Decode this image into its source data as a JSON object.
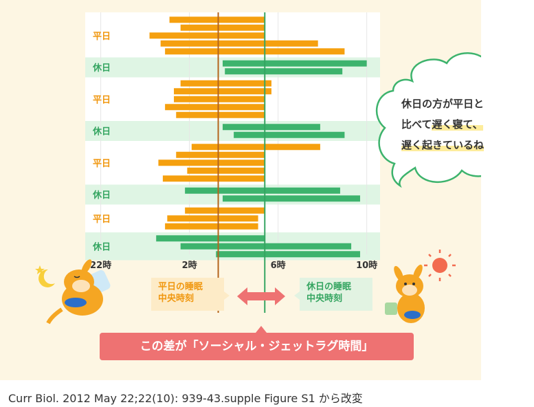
{
  "chart_data": {
    "type": "bar",
    "x_ticks": [
      {
        "value": 22,
        "label": "22時"
      },
      {
        "value": 26,
        "label": "2時"
      },
      {
        "value": 30,
        "label": "6時"
      },
      {
        "value": 34,
        "label": "10時"
      }
    ],
    "xlim": [
      21.3,
      34.6
    ],
    "groups": [
      {
        "label": "平日",
        "type": "weekday",
        "bars": [
          [
            25.1,
            29.4
          ],
          [
            25.6,
            29.4
          ],
          [
            24.2,
            29.4
          ],
          [
            24.7,
            31.8
          ],
          [
            24.9,
            33.0
          ]
        ]
      },
      {
        "label": "休日",
        "type": "weekend",
        "bars": [
          [
            27.5,
            34.0
          ],
          [
            27.6,
            32.9
          ]
        ]
      },
      {
        "label": "平日",
        "type": "weekday",
        "bars": [
          [
            25.6,
            29.7
          ],
          [
            25.3,
            29.7
          ],
          [
            25.3,
            29.4
          ],
          [
            24.9,
            29.4
          ],
          [
            25.4,
            29.4
          ]
        ]
      },
      {
        "label": "休日",
        "type": "weekend",
        "bars": [
          [
            27.5,
            31.9
          ],
          [
            28.0,
            33.0
          ]
        ]
      },
      {
        "label": "平日",
        "type": "weekday",
        "bars": [
          [
            26.1,
            31.9
          ],
          [
            25.4,
            29.4
          ],
          [
            24.6,
            29.4
          ],
          [
            25.9,
            29.4
          ],
          [
            24.8,
            29.4
          ]
        ]
      },
      {
        "label": "休日",
        "type": "weekend",
        "bars": [
          [
            25.8,
            32.8
          ],
          [
            27.5,
            33.7
          ]
        ]
      },
      {
        "label": "平日",
        "type": "weekday",
        "bars": [
          [
            25.8,
            29.4
          ],
          [
            25.0,
            29.1
          ],
          [
            24.9,
            29.1
          ]
        ]
      },
      {
        "label": "休日",
        "type": "weekend",
        "bars": [
          [
            24.5,
            29.4
          ],
          [
            25.6,
            33.3
          ],
          [
            27.2,
            33.7
          ]
        ]
      }
    ],
    "reference_lines": [
      {
        "name": "weekday-midpoint",
        "value": 27.3,
        "color": "#b5651d"
      },
      {
        "name": "weekend-midpoint",
        "value": 29.4,
        "color": "#35a561"
      }
    ],
    "colors": {
      "weekday": "#f5a00f",
      "weekend": "#3db36d",
      "weekday_label": "#f0970f",
      "weekend_label": "#35a561",
      "weekend_band": "#dff5e4"
    }
  },
  "labels": {
    "weekday_midpoint": [
      "平日の睡眠",
      "中央時刻"
    ],
    "weekend_midpoint": [
      "休日の睡眠",
      "中央時刻"
    ],
    "banner": "この差が「ソーシャル・ジェットラグ時間」",
    "bubble": {
      "line1": "休日の方が平日と",
      "line2_pre": "比べて",
      "line2_hl": "遅く寝て、",
      "line3_hl": "遅く起きているね"
    },
    "source": "Curr Biol. 2012 May 22;22(10): 939-43.supple Figure S1 から改変"
  },
  "icons": {
    "moon": "moon-icon",
    "sun": "sun-icon",
    "sleeping_character": "sleeping-kangaroo",
    "waking_character": "waking-kangaroo",
    "arrow": "double-arrow-icon"
  }
}
